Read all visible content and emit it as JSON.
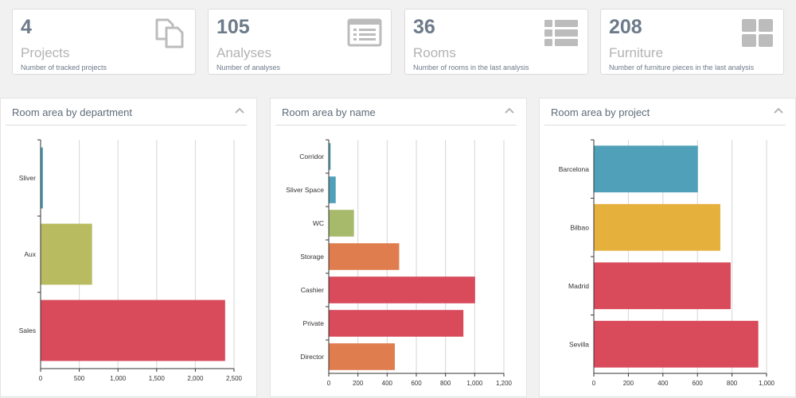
{
  "kpis": [
    {
      "value": "4",
      "label": "Projects",
      "description": "Number of tracked projects",
      "icon": "copy-icon"
    },
    {
      "value": "105",
      "label": "Analyses",
      "description": "Number of analyses",
      "icon": "list-icon"
    },
    {
      "value": "36",
      "label": "Rooms",
      "description": "Number of rooms in the last analysis",
      "icon": "table-rows-icon"
    },
    {
      "value": "208",
      "label": "Furniture",
      "description": "Number of furniture pieces in the last analysis",
      "icon": "grid-icon"
    }
  ],
  "panels": [
    {
      "title": "Room area by department",
      "collapse_icon": "chevron-up-icon"
    },
    {
      "title": "Room area by name",
      "collapse_icon": "chevron-up-icon"
    },
    {
      "title": "Room area by project",
      "collapse_icon": "chevron-up-icon"
    }
  ],
  "chart_data": [
    {
      "type": "bar",
      "orientation": "horizontal",
      "title": "Room area by department",
      "categories": [
        "Sliver",
        "Aux",
        "Sales"
      ],
      "values": [
        25,
        660,
        2380
      ],
      "colors": [
        "#4fa0b8",
        "#b8bb5f",
        "#d94a5b"
      ],
      "xlim": [
        0,
        2500
      ],
      "ticks": [
        0,
        500,
        1000,
        1500,
        2000,
        2500
      ],
      "tick_labels": [
        "0",
        "500",
        "1,000",
        "1,500",
        "2,000",
        "2,500"
      ],
      "grid": true
    },
    {
      "type": "bar",
      "orientation": "horizontal",
      "title": "Room area by name",
      "categories": [
        "Corridor",
        "Sliver Space",
        "WC",
        "Storage",
        "Cashier",
        "Private",
        "Director"
      ],
      "values": [
        10,
        45,
        170,
        480,
        1000,
        920,
        450
      ],
      "colors": [
        "#4fa0b8",
        "#4fa0b8",
        "#a7ba6c",
        "#e07d4f",
        "#d94a5b",
        "#d94a5b",
        "#e07d4f"
      ],
      "xlim": [
        0,
        1200
      ],
      "ticks": [
        0,
        200,
        400,
        600,
        800,
        1000,
        1200
      ],
      "tick_labels": [
        "0",
        "200",
        "400",
        "600",
        "800",
        "1,000",
        "1,200"
      ],
      "grid": true
    },
    {
      "type": "bar",
      "orientation": "horizontal",
      "title": "Room area by project",
      "categories": [
        "Barcelona",
        "Bilbao",
        "Madrid",
        "Sevilla"
      ],
      "values": [
        600,
        730,
        790,
        950
      ],
      "colors": [
        "#4fa0b8",
        "#e5b03b",
        "#d94a5b",
        "#d94a5b"
      ],
      "xlim": [
        0,
        1000
      ],
      "ticks": [
        0,
        200,
        400,
        600,
        800,
        1000
      ],
      "tick_labels": [
        "0",
        "200",
        "400",
        "600",
        "800",
        "1,000"
      ],
      "grid": true
    }
  ]
}
